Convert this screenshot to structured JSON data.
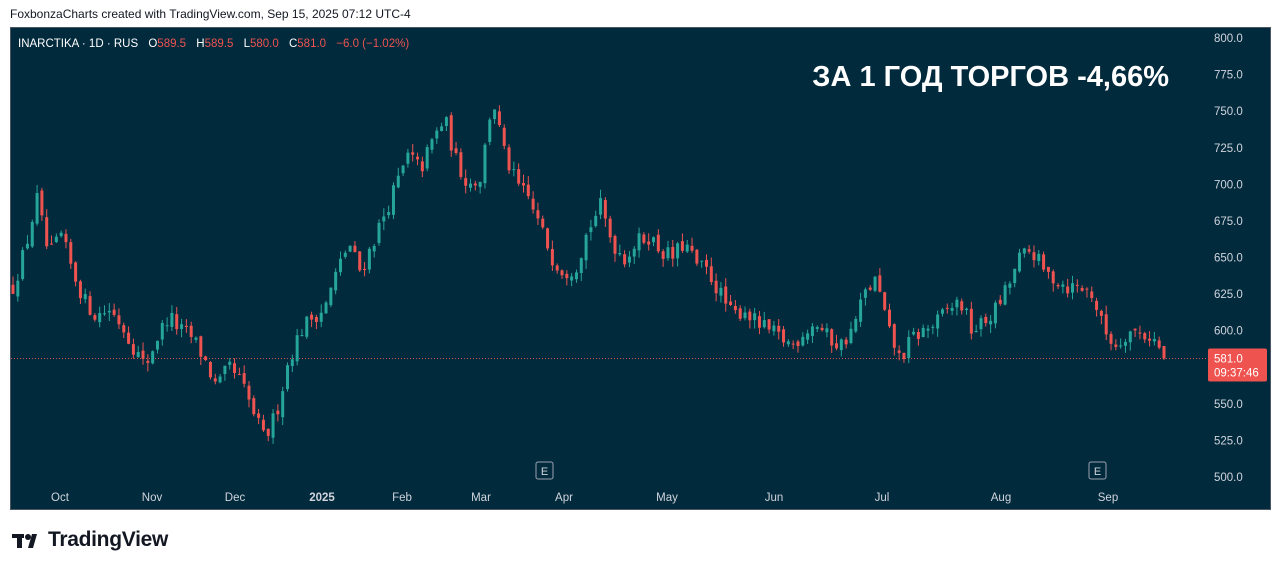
{
  "caption": "FoxbonzaCharts created with TradingView.com, Sep 15, 2025 07:12 UTC-4",
  "brand": "TradingView",
  "legend": {
    "symbol": "INARCTIKA · 1D · RUS",
    "o_label": "O",
    "o": "589.5",
    "h_label": "H",
    "h": "589.5",
    "l_label": "L",
    "l": "580.0",
    "c_label": "C",
    "c": "581.0",
    "change": "−6.0 (−1.02%)"
  },
  "headline": "ЗА 1 ГОД ТОРГОВ -4,66%",
  "price_badge": {
    "price": "581.0",
    "countdown": "09:37:46"
  },
  "earnings_marker_label": "E",
  "colors": {
    "background": "#012a3d",
    "up": "#26a69a",
    "down": "#ef5350",
    "axis_text": "#d1d4dc"
  },
  "chart_data": {
    "type": "candlestick",
    "y_range": [
      490,
      805
    ],
    "y_ticks": [
      "800.0",
      "775.0",
      "750.0",
      "725.0",
      "700.0",
      "675.0",
      "650.0",
      "625.0",
      "600.0",
      "575.0",
      "550.0",
      "525.0",
      "500.0"
    ],
    "x_labels": [
      "Oct",
      "Nov",
      "Dec",
      "2025",
      "Feb",
      "Mar",
      "Apr",
      "May",
      "Jun",
      "Jul",
      "Aug",
      "Sep"
    ],
    "last_price": 581.0,
    "earnings_markers": [
      "Apr",
      "Sep"
    ],
    "close_path": [
      630,
      655,
      690,
      650,
      665,
      640,
      620,
      610,
      615,
      605,
      590,
      575,
      595,
      610,
      600,
      595,
      580,
      560,
      575,
      565,
      545,
      525,
      545,
      580,
      600,
      610,
      615,
      640,
      660,
      640,
      660,
      680,
      700,
      720,
      710,
      730,
      745,
      715,
      700,
      705,
      760,
      720,
      700,
      690,
      670,
      650,
      640,
      645,
      670,
      685,
      660,
      650,
      660,
      665,
      655,
      650,
      660,
      645,
      640,
      625,
      610,
      615,
      605,
      600,
      595,
      590,
      600,
      605,
      595,
      590,
      600,
      625,
      635,
      600,
      580,
      595,
      600,
      605,
      615,
      620,
      600,
      605,
      615,
      630,
      650,
      655,
      640,
      635,
      630,
      630,
      625,
      600,
      590,
      600,
      598,
      596,
      582
    ]
  }
}
